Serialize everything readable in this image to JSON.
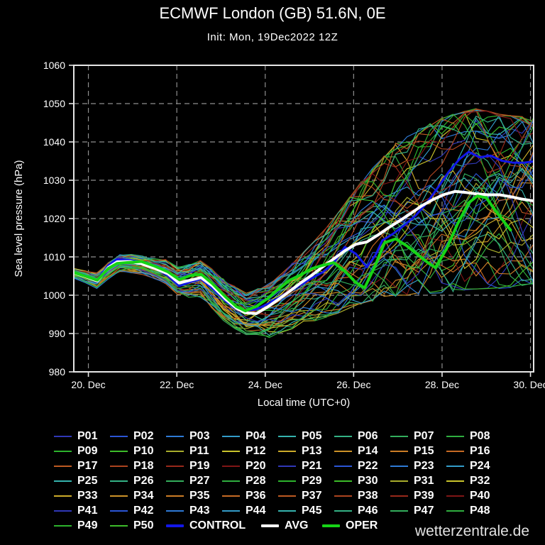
{
  "header": {
    "title": "ECMWF London (GB) 51.6N, 0E",
    "subtitle": "Init: Mon, 19Dec2022 12Z"
  },
  "watermark": "wetterzentrale.de",
  "chart_data": {
    "type": "line",
    "title": "ECMWF London (GB) 51.6N, 0E",
    "subtitle": "Init: Mon, 19Dec2022 12Z",
    "xlabel": "Local time (UTC+0)",
    "ylabel": "Sea level pressure (hPa)",
    "ylim": [
      980,
      1060
    ],
    "yticks": [
      980,
      990,
      1000,
      1010,
      1020,
      1030,
      1040,
      1050,
      1060
    ],
    "xticks": [
      {
        "t": 0.5,
        "label": "20. Dec"
      },
      {
        "t": 2.5,
        "label": "22. Dec"
      },
      {
        "t": 4.5,
        "label": "24. Dec"
      },
      {
        "t": 6.5,
        "label": "26. Dec"
      },
      {
        "t": 8.5,
        "label": "28. Dec"
      },
      {
        "t": 10.5,
        "label": "30. Dec"
      }
    ],
    "t_unit": "days since init (Mon 19Dec2022 12Z)",
    "t_range": [
      0.17,
      10.58
    ],
    "grid": "on",
    "background": "#000000",
    "legend_position": "bottom",
    "series": [
      {
        "name": "CONTROL",
        "color": "#1217e8",
        "width": 3,
        "points": [
          [
            0.17,
            1006.0
          ],
          [
            0.45,
            1005.0
          ],
          [
            0.7,
            1004.0
          ],
          [
            0.95,
            1007.8
          ],
          [
            1.15,
            1009.4
          ],
          [
            1.45,
            1009.2
          ],
          [
            1.7,
            1008.4
          ],
          [
            2.0,
            1007.1
          ],
          [
            2.3,
            1005.1
          ],
          [
            2.55,
            1002.4
          ],
          [
            2.8,
            1003.4
          ],
          [
            3.05,
            1004.2
          ],
          [
            3.3,
            1001.8
          ],
          [
            3.6,
            998.5
          ],
          [
            3.85,
            996.6
          ],
          [
            4.05,
            996.0
          ],
          [
            4.3,
            996.3
          ],
          [
            4.55,
            997.7
          ],
          [
            4.8,
            999.3
          ],
          [
            5.05,
            1001.1
          ],
          [
            5.3,
            1002.7
          ],
          [
            5.55,
            1004.4
          ],
          [
            5.8,
            1006.0
          ],
          [
            6.05,
            1008.4
          ],
          [
            6.3,
            1012.6
          ],
          [
            6.55,
            1010.8
          ],
          [
            6.8,
            1007.3
          ],
          [
            7.0,
            1010.6
          ],
          [
            7.15,
            1014.3
          ],
          [
            7.4,
            1016.1
          ],
          [
            7.65,
            1018.3
          ],
          [
            7.9,
            1020.8
          ],
          [
            8.15,
            1024.0
          ],
          [
            8.4,
            1028.0
          ],
          [
            8.65,
            1032.2
          ],
          [
            8.9,
            1035.6
          ],
          [
            9.1,
            1037.4
          ],
          [
            9.35,
            1036.0
          ],
          [
            9.6,
            1036.4
          ],
          [
            9.85,
            1035.1
          ],
          [
            10.1,
            1034.6
          ],
          [
            10.35,
            1034.6
          ],
          [
            10.58,
            1034.9
          ]
        ]
      },
      {
        "name": "AVG",
        "color": "#ffffff",
        "width": 4,
        "points": [
          [
            0.17,
            1005.8
          ],
          [
            0.45,
            1004.8
          ],
          [
            0.7,
            1003.7
          ],
          [
            0.95,
            1007.2
          ],
          [
            1.15,
            1008.7
          ],
          [
            1.45,
            1008.8
          ],
          [
            1.7,
            1008.2
          ],
          [
            2.0,
            1007.0
          ],
          [
            2.3,
            1005.6
          ],
          [
            2.55,
            1003.2
          ],
          [
            2.8,
            1003.9
          ],
          [
            3.05,
            1004.6
          ],
          [
            3.3,
            1002.5
          ],
          [
            3.6,
            999.0
          ],
          [
            3.85,
            996.6
          ],
          [
            4.05,
            995.4
          ],
          [
            4.3,
            995.2
          ],
          [
            4.55,
            996.9
          ],
          [
            4.8,
            998.9
          ],
          [
            5.05,
            1001.0
          ],
          [
            5.3,
            1003.2
          ],
          [
            5.55,
            1005.2
          ],
          [
            5.8,
            1007.4
          ],
          [
            6.05,
            1009.5
          ],
          [
            6.3,
            1011.6
          ],
          [
            6.55,
            1013.3
          ],
          [
            6.8,
            1013.9
          ],
          [
            7.05,
            1015.7
          ],
          [
            7.3,
            1017.7
          ],
          [
            7.55,
            1019.5
          ],
          [
            7.8,
            1021.4
          ],
          [
            8.05,
            1023.4
          ],
          [
            8.3,
            1025.0
          ],
          [
            8.55,
            1026.3
          ],
          [
            8.8,
            1027.1
          ],
          [
            9.05,
            1026.8
          ],
          [
            9.3,
            1026.4
          ],
          [
            9.55,
            1026.2
          ],
          [
            9.8,
            1026.2
          ],
          [
            10.05,
            1025.7
          ],
          [
            10.3,
            1025.1
          ],
          [
            10.58,
            1024.6
          ]
        ]
      },
      {
        "name": "OPER",
        "color": "#16d416",
        "width": 4,
        "points": [
          [
            0.17,
            1005.9
          ],
          [
            0.45,
            1004.9
          ],
          [
            0.7,
            1003.9
          ],
          [
            0.95,
            1007.0
          ],
          [
            1.15,
            1008.3
          ],
          [
            1.45,
            1008.6
          ],
          [
            1.7,
            1008.8
          ],
          [
            2.0,
            1007.6
          ],
          [
            2.3,
            1006.1
          ],
          [
            2.55,
            1004.1
          ],
          [
            2.8,
            1005.1
          ],
          [
            3.05,
            1005.5
          ],
          [
            3.3,
            1003.1
          ],
          [
            3.6,
            999.6
          ],
          [
            3.85,
            997.0
          ],
          [
            4.05,
            995.9
          ],
          [
            4.3,
            997.1
          ],
          [
            4.55,
            999.1
          ],
          [
            4.8,
            1001.6
          ],
          [
            5.05,
            1003.9
          ],
          [
            5.3,
            1005.3
          ],
          [
            5.55,
            1006.9
          ],
          [
            5.8,
            1007.8
          ],
          [
            6.05,
            1008.5
          ],
          [
            6.3,
            1006.3
          ],
          [
            6.55,
            1003.3
          ],
          [
            6.75,
            1001.9
          ],
          [
            7.0,
            1008.1
          ],
          [
            7.2,
            1013.7
          ],
          [
            7.45,
            1014.7
          ],
          [
            7.7,
            1012.9
          ],
          [
            7.95,
            1010.6
          ],
          [
            8.2,
            1008.3
          ],
          [
            8.35,
            1007.2
          ],
          [
            8.6,
            1012.1
          ],
          [
            8.85,
            1018.6
          ],
          [
            9.1,
            1024.1
          ],
          [
            9.3,
            1025.9
          ],
          [
            9.5,
            1025.4
          ],
          [
            9.75,
            1021.4
          ],
          [
            10.05,
            1017.0
          ]
        ]
      }
    ],
    "ensemble": {
      "count": 50,
      "line_width": 1.15,
      "palette20": [
        "#3038b8",
        "#2b55d6",
        "#2e7ad6",
        "#339cc9",
        "#35b3ae",
        "#34b285",
        "#33ae5c",
        "#2fae3f",
        "#2db32d",
        "#3dbc2a",
        "#a8ad2c",
        "#c9c42c",
        "#ccab2a",
        "#cc9228",
        "#cc7d26",
        "#c66a24",
        "#bd5a22",
        "#ad441f",
        "#99291b",
        "#801616"
      ],
      "envelope": {
        "t": [
          0.17,
          0.7,
          1.15,
          1.7,
          2.3,
          2.55,
          3.05,
          3.6,
          4.05,
          4.5,
          5.0,
          5.5,
          6.0,
          6.5,
          7.0,
          7.5,
          8.1,
          8.7,
          9.3,
          9.8,
          10.58
        ],
        "min": [
          1004.3,
          1001.8,
          1006.3,
          1005.8,
          1003.0,
          999.5,
          999.8,
          993.0,
          990.0,
          988.8,
          991.0,
          993.0,
          995.0,
          997.0,
          999.0,
          1000.0,
          1000.5,
          1001.0,
          1001.5,
          1002.0,
          1003.0
        ],
        "max": [
          1007.2,
          1005.8,
          1010.6,
          1010.2,
          1009.0,
          1007.0,
          1009.2,
          1003.5,
          1000.5,
          1002.0,
          1007.0,
          1012.5,
          1019.0,
          1027.0,
          1034.0,
          1040.0,
          1044.0,
          1047.0,
          1048.5,
          1047.0,
          1046.0
        ]
      }
    }
  },
  "legend": {
    "members": [
      "P01",
      "P02",
      "P03",
      "P04",
      "P05",
      "P06",
      "P07",
      "P08",
      "P09",
      "P10",
      "P11",
      "P12",
      "P13",
      "P14",
      "P15",
      "P16",
      "P17",
      "P18",
      "P19",
      "P20",
      "P21",
      "P22",
      "P23",
      "P24",
      "P25",
      "P26",
      "P27",
      "P28",
      "P29",
      "P30",
      "P31",
      "P32",
      "P33",
      "P34",
      "P35",
      "P36",
      "P37",
      "P38",
      "P39",
      "P40",
      "P41",
      "P42",
      "P43",
      "P44",
      "P45",
      "P46",
      "P47",
      "P48",
      "P49",
      "P50"
    ],
    "specials": [
      {
        "label": "CONTROL",
        "color": "#1217e8"
      },
      {
        "label": "AVG",
        "color": "#ffffff"
      },
      {
        "label": "OPER",
        "color": "#16d416"
      }
    ]
  }
}
